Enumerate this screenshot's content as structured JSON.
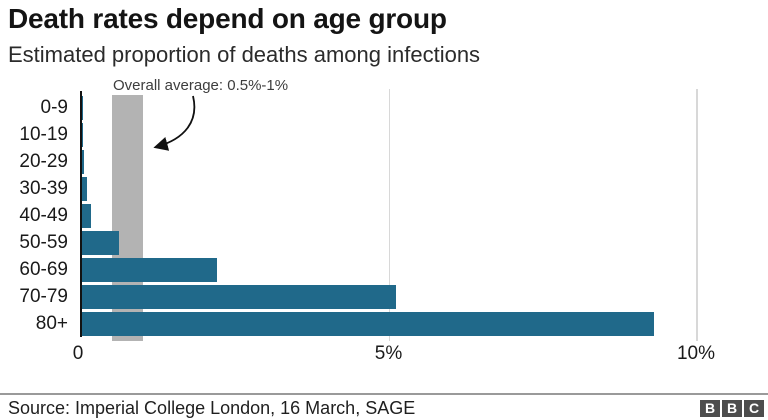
{
  "header": {
    "title": "Death rates depend on age group",
    "subtitle": "Estimated proportion of deaths among infections"
  },
  "annotation": {
    "text": "Overall average: 0.5%-1%"
  },
  "chart_data": {
    "type": "bar",
    "orientation": "horizontal",
    "title": "Death rates depend on age group",
    "subtitle": "Estimated proportion of deaths among infections",
    "categories": [
      "0-9",
      "10-19",
      "20-29",
      "30-39",
      "40-49",
      "50-59",
      "60-69",
      "70-79",
      "80+"
    ],
    "values": [
      0.002,
      0.006,
      0.03,
      0.08,
      0.15,
      0.6,
      2.2,
      5.1,
      9.3
    ],
    "unit": "%",
    "xlim": [
      0,
      11
    ],
    "x_ticks": [
      {
        "label": "0",
        "value": 0
      },
      {
        "label": "5%",
        "value": 5
      },
      {
        "label": "10%",
        "value": 10
      }
    ],
    "grid": "vertical gridlines at 5% and 10%",
    "legend": "none",
    "average_band": {
      "from": 0.5,
      "to": 1.0,
      "label": "Overall average: 0.5%-1%"
    }
  },
  "colors": {
    "bar": "#20698a",
    "band": "#b3b3b3",
    "axis": "#121212",
    "gridline": "#d8d8d8",
    "arrow": "#111111"
  },
  "footer": {
    "source": "Source: Imperial College London, 16 March, SAGE",
    "logo_letters": [
      "B",
      "B",
      "C"
    ]
  }
}
